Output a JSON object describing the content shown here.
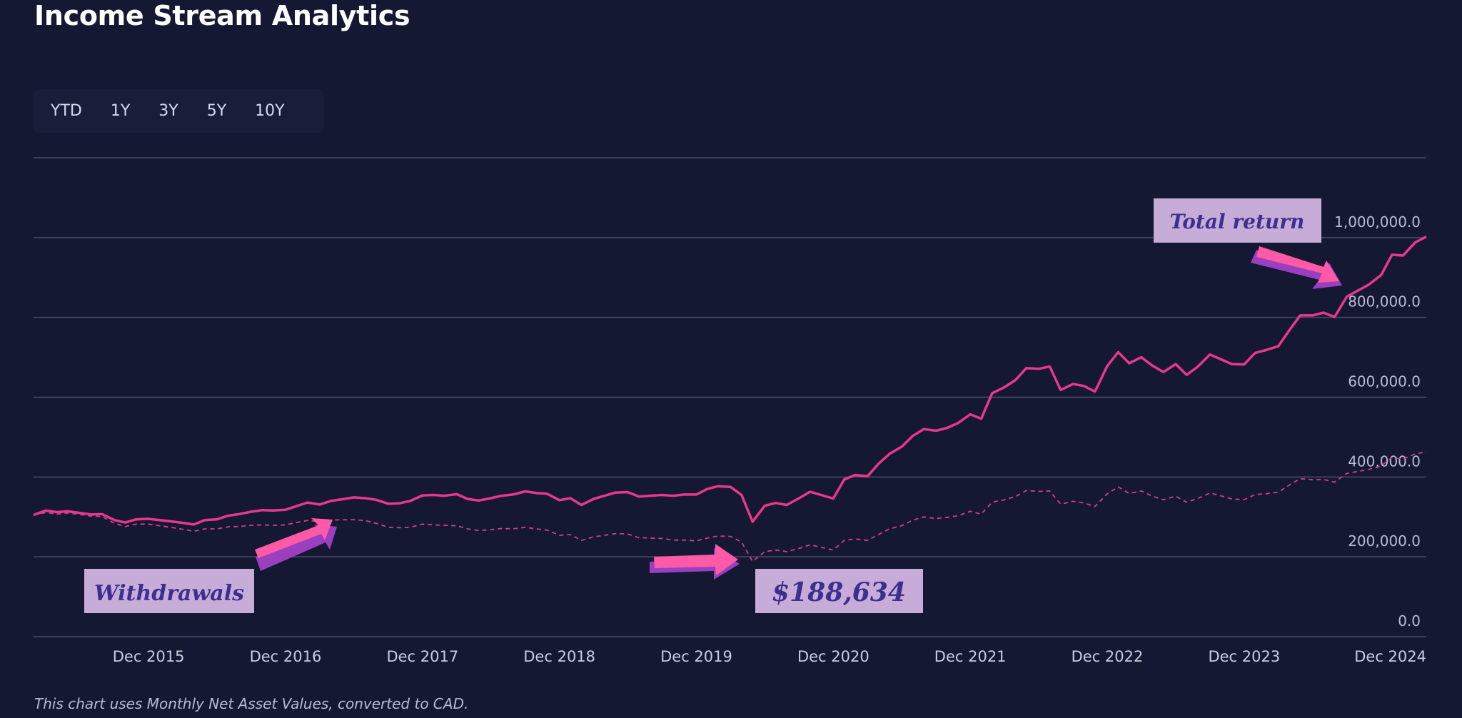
{
  "title": "Income Stream Analytics",
  "range_tabs": [
    "YTD",
    "1Y",
    "3Y",
    "5Y",
    "10Y"
  ],
  "footnote": "This chart uses Monthly Net Asset Values, converted to CAD.",
  "colors": {
    "background": "#141833",
    "total_return": "#e8388a",
    "withdrawals": "#d53c8e",
    "callout_fill": "#c8acd8",
    "callout_text": "#3b2f8f",
    "arrow_main": "#ff5aa5",
    "arrow_shadow": "#9b3fc1",
    "grid": "#4a4e6d"
  },
  "annotations": {
    "withdrawals_label": "Withdrawals",
    "min_label": "$188,634",
    "total_label": "Total return"
  },
  "chart_data": {
    "type": "line",
    "x_axis": {
      "ticks": [
        "Dec 2015",
        "Dec 2016",
        "Dec 2017",
        "Dec 2018",
        "Dec 2019",
        "Dec 2020",
        "Dec 2021",
        "Dec 2022",
        "Dec 2023",
        "Dec 2024"
      ]
    },
    "y_axis": {
      "ticks": [
        "0.0",
        "200,000.0",
        "400,000.0",
        "600,000.0",
        "800,000.0",
        "1,000,000.0"
      ],
      "tick_values": [
        0,
        200000,
        400000,
        600000,
        800000,
        1000000
      ],
      "range": [
        0,
        1200000
      ]
    },
    "x_range": [
      2015.08,
      2024.92
    ],
    "series": [
      {
        "style": "solid",
        "points": [
          [
            2015.08,
            305000
          ],
          [
            2015.17,
            316000
          ],
          [
            2015.25,
            312000
          ],
          [
            2015.33,
            314000
          ],
          [
            2015.42,
            310000
          ],
          [
            2015.5,
            306000
          ],
          [
            2015.58,
            307000
          ],
          [
            2015.67,
            292000
          ],
          [
            2015.75,
            286000
          ],
          [
            2015.83,
            294000
          ],
          [
            2015.92,
            295000
          ],
          [
            2016.0,
            292000
          ],
          [
            2016.08,
            289000
          ],
          [
            2016.17,
            285000
          ],
          [
            2016.25,
            281000
          ],
          [
            2016.33,
            292000
          ],
          [
            2016.42,
            294000
          ],
          [
            2016.5,
            303000
          ],
          [
            2016.58,
            307000
          ],
          [
            2016.67,
            313000
          ],
          [
            2016.75,
            317000
          ],
          [
            2016.83,
            316000
          ],
          [
            2016.92,
            318000
          ],
          [
            2017.0,
            327000
          ],
          [
            2017.08,
            336000
          ],
          [
            2017.17,
            331000
          ],
          [
            2017.25,
            340000
          ],
          [
            2017.33,
            344000
          ],
          [
            2017.42,
            349000
          ],
          [
            2017.5,
            347000
          ],
          [
            2017.58,
            343000
          ],
          [
            2017.67,
            333000
          ],
          [
            2017.75,
            334000
          ],
          [
            2017.83,
            340000
          ],
          [
            2017.92,
            354000
          ],
          [
            2018.0,
            355000
          ],
          [
            2018.08,
            353000
          ],
          [
            2018.17,
            357000
          ],
          [
            2018.25,
            345000
          ],
          [
            2018.33,
            341000
          ],
          [
            2018.42,
            347000
          ],
          [
            2018.5,
            353000
          ],
          [
            2018.58,
            356000
          ],
          [
            2018.67,
            364000
          ],
          [
            2018.75,
            360000
          ],
          [
            2018.83,
            358000
          ],
          [
            2018.92,
            342000
          ],
          [
            2019.0,
            347000
          ],
          [
            2019.08,
            330000
          ],
          [
            2019.17,
            345000
          ],
          [
            2019.25,
            353000
          ],
          [
            2019.33,
            361000
          ],
          [
            2019.42,
            362000
          ],
          [
            2019.5,
            351000
          ],
          [
            2019.58,
            353000
          ],
          [
            2019.67,
            355000
          ],
          [
            2019.75,
            353000
          ],
          [
            2019.83,
            356000
          ],
          [
            2019.92,
            356000
          ],
          [
            2020.0,
            370000
          ],
          [
            2020.08,
            377000
          ],
          [
            2020.17,
            375000
          ],
          [
            2020.25,
            355000
          ],
          [
            2020.33,
            288000
          ],
          [
            2020.42,
            328000
          ],
          [
            2020.5,
            335000
          ],
          [
            2020.58,
            330000
          ],
          [
            2020.67,
            347000
          ],
          [
            2020.75,
            363000
          ],
          [
            2020.83,
            355000
          ],
          [
            2020.92,
            346000
          ],
          [
            2021.0,
            394000
          ],
          [
            2021.08,
            405000
          ],
          [
            2021.17,
            402000
          ],
          [
            2021.25,
            433000
          ],
          [
            2021.33,
            458000
          ],
          [
            2021.42,
            476000
          ],
          [
            2021.5,
            503000
          ],
          [
            2021.58,
            520000
          ],
          [
            2021.67,
            516000
          ],
          [
            2021.75,
            523000
          ],
          [
            2021.83,
            535000
          ],
          [
            2021.92,
            557000
          ],
          [
            2022.0,
            546000
          ],
          [
            2022.08,
            610000
          ],
          [
            2022.17,
            625000
          ],
          [
            2022.25,
            643000
          ],
          [
            2022.33,
            673000
          ],
          [
            2022.42,
            671000
          ],
          [
            2022.5,
            677000
          ],
          [
            2022.58,
            618000
          ],
          [
            2022.67,
            633000
          ],
          [
            2022.75,
            628000
          ],
          [
            2022.83,
            614000
          ],
          [
            2022.92,
            678000
          ],
          [
            2023.0,
            713000
          ],
          [
            2023.08,
            685000
          ],
          [
            2023.17,
            700000
          ],
          [
            2023.25,
            679000
          ],
          [
            2023.33,
            663000
          ],
          [
            2023.42,
            683000
          ],
          [
            2023.5,
            656000
          ],
          [
            2023.58,
            676000
          ],
          [
            2023.67,
            707000
          ],
          [
            2023.75,
            695000
          ],
          [
            2023.83,
            683000
          ],
          [
            2023.92,
            682000
          ],
          [
            2024.0,
            711000
          ],
          [
            2024.08,
            718000
          ],
          [
            2024.17,
            728000
          ],
          [
            2024.25,
            768000
          ],
          [
            2024.33,
            805000
          ],
          [
            2024.42,
            805000
          ],
          [
            2024.5,
            812000
          ],
          [
            2024.58,
            801000
          ],
          [
            2024.67,
            852000
          ],
          [
            2024.75,
            867000
          ],
          [
            2024.83,
            882000
          ],
          [
            2024.92,
            906000
          ],
          [
            2025.0,
            957000
          ],
          [
            2025.08,
            955000
          ],
          [
            2025.17,
            988000
          ],
          [
            2025.25,
            1002000
          ]
        ]
      },
      {
        "style": "dashed",
        "points": [
          [
            2015.08,
            305000
          ],
          [
            2015.17,
            311000
          ],
          [
            2015.25,
            307000
          ],
          [
            2015.33,
            310000
          ],
          [
            2015.42,
            306000
          ],
          [
            2015.5,
            302000
          ],
          [
            2015.58,
            301000
          ],
          [
            2015.67,
            284000
          ],
          [
            2015.75,
            276000
          ],
          [
            2015.83,
            282000
          ],
          [
            2015.92,
            282000
          ],
          [
            2016.0,
            278000
          ],
          [
            2016.08,
            274000
          ],
          [
            2016.17,
            269000
          ],
          [
            2016.25,
            264000
          ],
          [
            2016.33,
            270000
          ],
          [
            2016.42,
            270000
          ],
          [
            2016.5,
            275000
          ],
          [
            2016.58,
            276000
          ],
          [
            2016.67,
            279000
          ],
          [
            2016.75,
            280000
          ],
          [
            2016.83,
            279000
          ],
          [
            2016.92,
            280000
          ],
          [
            2017.0,
            286000
          ],
          [
            2017.08,
            291000
          ],
          [
            2017.17,
            288000
          ],
          [
            2017.25,
            292000
          ],
          [
            2017.33,
            293000
          ],
          [
            2017.42,
            293000
          ],
          [
            2017.5,
            291000
          ],
          [
            2017.58,
            284000
          ],
          [
            2017.67,
            274000
          ],
          [
            2017.75,
            273000
          ],
          [
            2017.83,
            274000
          ],
          [
            2017.92,
            282000
          ],
          [
            2018.0,
            280000
          ],
          [
            2018.08,
            279000
          ],
          [
            2018.17,
            278000
          ],
          [
            2018.25,
            270000
          ],
          [
            2018.33,
            266000
          ],
          [
            2018.42,
            268000
          ],
          [
            2018.5,
            271000
          ],
          [
            2018.58,
            270000
          ],
          [
            2018.67,
            274000
          ],
          [
            2018.75,
            270000
          ],
          [
            2018.83,
            267000
          ],
          [
            2018.92,
            254000
          ],
          [
            2019.0,
            256000
          ],
          [
            2019.08,
            241000
          ],
          [
            2019.17,
            250000
          ],
          [
            2019.25,
            254000
          ],
          [
            2019.33,
            258000
          ],
          [
            2019.42,
            257000
          ],
          [
            2019.5,
            248000
          ],
          [
            2019.58,
            247000
          ],
          [
            2019.67,
            246000
          ],
          [
            2019.75,
            242000
          ],
          [
            2019.83,
            242000
          ],
          [
            2019.92,
            240000
          ],
          [
            2020.0,
            247000
          ],
          [
            2020.08,
            252000
          ],
          [
            2020.17,
            251000
          ],
          [
            2020.25,
            237000
          ],
          [
            2020.33,
            188634
          ],
          [
            2020.42,
            213000
          ],
          [
            2020.5,
            217000
          ],
          [
            2020.58,
            213000
          ],
          [
            2020.67,
            221000
          ],
          [
            2020.75,
            230000
          ],
          [
            2020.83,
            224000
          ],
          [
            2020.92,
            217000
          ],
          [
            2021.0,
            241000
          ],
          [
            2021.08,
            245000
          ],
          [
            2021.17,
            241000
          ],
          [
            2021.25,
            256000
          ],
          [
            2021.33,
            270000
          ],
          [
            2021.42,
            278000
          ],
          [
            2021.5,
            292000
          ],
          [
            2021.58,
            300000
          ],
          [
            2021.67,
            296000
          ],
          [
            2021.75,
            299000
          ],
          [
            2021.83,
            303000
          ],
          [
            2021.92,
            314000
          ],
          [
            2022.0,
            307000
          ],
          [
            2022.08,
            337000
          ],
          [
            2022.17,
            343000
          ],
          [
            2022.25,
            351000
          ],
          [
            2022.33,
            366000
          ],
          [
            2022.42,
            364000
          ],
          [
            2022.5,
            365000
          ],
          [
            2022.58,
            332000
          ],
          [
            2022.67,
            339000
          ],
          [
            2022.75,
            335000
          ],
          [
            2022.83,
            326000
          ],
          [
            2022.92,
            358000
          ],
          [
            2023.0,
            375000
          ],
          [
            2023.08,
            359000
          ],
          [
            2023.17,
            365000
          ],
          [
            2023.25,
            352000
          ],
          [
            2023.33,
            343000
          ],
          [
            2023.42,
            352000
          ],
          [
            2023.5,
            337000
          ],
          [
            2023.58,
            346000
          ],
          [
            2023.67,
            360000
          ],
          [
            2023.75,
            353000
          ],
          [
            2023.83,
            345000
          ],
          [
            2023.92,
            343000
          ],
          [
            2024.0,
            356000
          ],
          [
            2024.08,
            358000
          ],
          [
            2024.17,
            362000
          ],
          [
            2024.25,
            380000
          ],
          [
            2024.33,
            396000
          ],
          [
            2024.42,
            393000
          ],
          [
            2024.5,
            394000
          ],
          [
            2024.58,
            387000
          ],
          [
            2024.67,
            409000
          ],
          [
            2024.75,
            414000
          ],
          [
            2024.83,
            419000
          ],
          [
            2024.92,
            428000
          ],
          [
            2025.0,
            449000
          ],
          [
            2025.08,
            445000
          ],
          [
            2025.17,
            458000
          ],
          [
            2025.25,
            463000
          ]
        ]
      }
    ],
    "legend": "none",
    "grid": true
  }
}
